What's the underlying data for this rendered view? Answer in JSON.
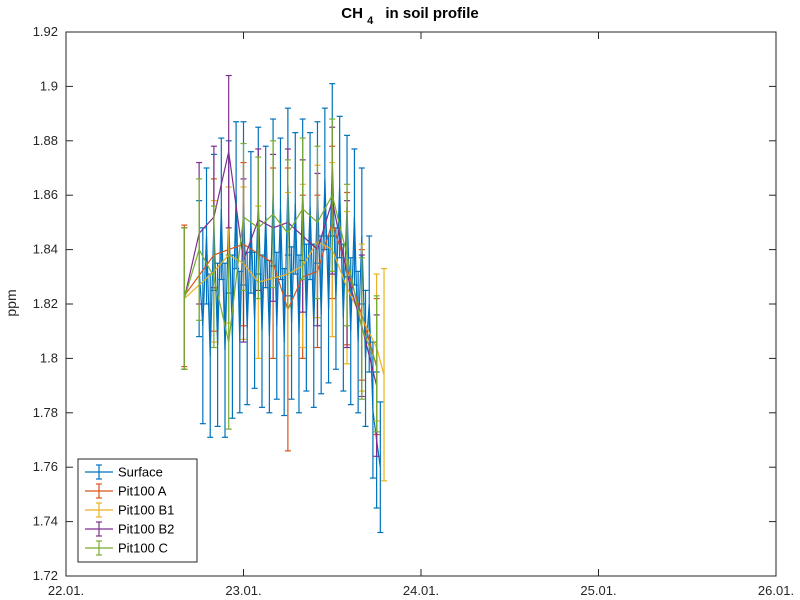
{
  "chart_data": {
    "type": "line",
    "title": "CH",
    "title_subscript": "4",
    "title_suffix": "in soil profile",
    "ylabel": "ppm",
    "xlabel": "",
    "xlim": [
      "22.01.",
      "26.01."
    ],
    "ylim": [
      1.72,
      1.92
    ],
    "x_ticks": [
      "22.01.",
      "23.01.",
      "24.01.",
      "25.01.",
      "26.01."
    ],
    "y_ticks": [
      "1.72",
      "1.74",
      "1.76",
      "1.78",
      "1.8",
      "1.82",
      "1.84",
      "1.86",
      "1.88",
      "1.9",
      "1.92"
    ],
    "grid": false,
    "legend_position": "bottom-left",
    "error_bars": true,
    "series": [
      {
        "name": "Surface",
        "color": "#0072BD",
        "points": [
          [
            "22.01. 18:00",
            1.833,
            0.025
          ],
          [
            "22.01. 18:30",
            1.812,
            0.036
          ],
          [
            "22.01. 19:00",
            1.845,
            0.025
          ],
          [
            "22.01. 19:30",
            1.801,
            0.03
          ],
          [
            "22.01. 20:00",
            1.85,
            0.025
          ],
          [
            "22.01. 20:30",
            1.805,
            0.03
          ],
          [
            "22.01. 21:00",
            1.855,
            0.026
          ],
          [
            "22.01. 21:30",
            1.803,
            0.032
          ],
          [
            "22.01. 22:00",
            1.852,
            0.028
          ],
          [
            "22.01. 22:30",
            1.808,
            0.03
          ],
          [
            "22.01. 23:00",
            1.86,
            0.027
          ],
          [
            "22.01. 23:30",
            1.806,
            0.026
          ],
          [
            "23.01. 00:00",
            1.857,
            0.03
          ],
          [
            "23.01. 00:30",
            1.811,
            0.028
          ],
          [
            "23.01. 01:00",
            1.85,
            0.026
          ],
          [
            "23.01. 01:30",
            1.814,
            0.025
          ],
          [
            "23.01. 02:00",
            1.858,
            0.027
          ],
          [
            "23.01. 02:30",
            1.81,
            0.028
          ],
          [
            "23.01. 03:00",
            1.852,
            0.026
          ],
          [
            "23.01. 03:30",
            1.808,
            0.028
          ],
          [
            "23.01. 04:00",
            1.861,
            0.027
          ],
          [
            "23.01. 04:30",
            1.812,
            0.027
          ],
          [
            "23.01. 05:00",
            1.855,
            0.026
          ],
          [
            "23.01. 05:30",
            1.806,
            0.027
          ],
          [
            "23.01. 06:00",
            1.865,
            0.027
          ],
          [
            "23.01. 06:30",
            1.813,
            0.028
          ],
          [
            "23.01. 07:00",
            1.857,
            0.026
          ],
          [
            "23.01. 07:30",
            1.809,
            0.029
          ],
          [
            "23.01. 08:00",
            1.862,
            0.026
          ],
          [
            "23.01. 08:30",
            1.815,
            0.027
          ],
          [
            "23.01. 09:00",
            1.856,
            0.027
          ],
          [
            "23.01. 09:30",
            1.812,
            0.03
          ],
          [
            "23.01. 10:00",
            1.861,
            0.026
          ],
          [
            "23.01. 10:30",
            1.816,
            0.029
          ],
          [
            "23.01. 11:00",
            1.866,
            0.026
          ],
          [
            "23.01. 11:30",
            1.818,
            0.027
          ],
          [
            "23.01. 12:00",
            1.873,
            0.028
          ],
          [
            "23.01. 12:30",
            1.822,
            0.026
          ],
          [
            "23.01. 13:00",
            1.863,
            0.026
          ],
          [
            "23.01. 13:30",
            1.815,
            0.027
          ],
          [
            "23.01. 14:00",
            1.856,
            0.026
          ],
          [
            "23.01. 14:30",
            1.81,
            0.027
          ],
          [
            "23.01. 15:00",
            1.852,
            0.025
          ],
          [
            "23.01. 15:30",
            1.806,
            0.026
          ],
          [
            "23.01. 16:00",
            1.845,
            0.025
          ],
          [
            "23.01. 16:30",
            1.8,
            0.025
          ],
          [
            "23.01. 17:00",
            1.82,
            0.025
          ],
          [
            "23.01. 17:30",
            1.781,
            0.025
          ],
          [
            "23.01. 18:00",
            1.77,
            0.025
          ],
          [
            "23.01. 18:30",
            1.76,
            0.024
          ]
        ]
      },
      {
        "name": "Pit100 A",
        "color": "#D95319",
        "points": [
          [
            "22.01. 16:00",
            1.823,
            0.026
          ],
          [
            "22.01. 20:00",
            1.838,
            0.028
          ],
          [
            "23.01. 00:00",
            1.842,
            0.03
          ],
          [
            "23.01. 04:00",
            1.835,
            0.035
          ],
          [
            "23.01. 06:00",
            1.818,
            0.052
          ],
          [
            "23.01. 08:00",
            1.83,
            0.03
          ],
          [
            "23.01. 10:00",
            1.832,
            0.028
          ],
          [
            "23.01. 12:00",
            1.85,
            0.028
          ],
          [
            "23.01. 14:00",
            1.833,
            0.028
          ],
          [
            "23.01. 16:00",
            1.816,
            0.024
          ],
          [
            "23.01. 18:00",
            1.797,
            0.025
          ]
        ]
      },
      {
        "name": "Pit100 B1",
        "color": "#EDB120",
        "points": [
          [
            "22.01. 16:00",
            1.822,
            0.026
          ],
          [
            "22.01. 20:00",
            1.832,
            0.026
          ],
          [
            "22.01. 22:00",
            1.838,
            0.025
          ],
          [
            "23.01. 00:00",
            1.835,
            0.028
          ],
          [
            "23.01. 02:00",
            1.828,
            0.028
          ],
          [
            "23.01. 06:00",
            1.831,
            0.03
          ],
          [
            "23.01. 08:00",
            1.834,
            0.03
          ],
          [
            "23.01. 10:00",
            1.843,
            0.028
          ],
          [
            "23.01. 12:00",
            1.84,
            0.032
          ],
          [
            "23.01. 14:00",
            1.826,
            0.028
          ],
          [
            "23.01. 16:00",
            1.815,
            0.027
          ],
          [
            "23.01. 18:00",
            1.804,
            0.027
          ],
          [
            "23.01. 19:00",
            1.794,
            0.039
          ]
        ]
      },
      {
        "name": "Pit100 B2",
        "color": "#7E2F8E",
        "points": [
          [
            "22.01. 16:00",
            1.822,
            0.026
          ],
          [
            "22.01. 18:00",
            1.846,
            0.026
          ],
          [
            "22.01. 20:00",
            1.852,
            0.026
          ],
          [
            "22.01. 22:00",
            1.876,
            0.028
          ],
          [
            "23.01. 00:00",
            1.836,
            0.03
          ],
          [
            "23.01. 02:00",
            1.851,
            0.026
          ],
          [
            "23.01. 04:00",
            1.848,
            0.027
          ],
          [
            "23.01. 06:00",
            1.85,
            0.027
          ],
          [
            "23.01. 08:00",
            1.845,
            0.028
          ],
          [
            "23.01. 10:00",
            1.84,
            0.028
          ],
          [
            "23.01. 12:00",
            1.858,
            0.027
          ],
          [
            "23.01. 14:00",
            1.831,
            0.027
          ],
          [
            "23.01. 16:00",
            1.812,
            0.026
          ],
          [
            "23.01. 18:00",
            1.79,
            0.026
          ]
        ]
      },
      {
        "name": "Pit100 C",
        "color": "#77AC30",
        "points": [
          [
            "22.01. 16:00",
            1.822,
            0.026
          ],
          [
            "22.01. 18:00",
            1.84,
            0.026
          ],
          [
            "22.01. 20:00",
            1.83,
            0.026
          ],
          [
            "22.01. 22:00",
            1.806,
            0.032
          ],
          [
            "23.01. 00:00",
            1.852,
            0.027
          ],
          [
            "23.01. 02:00",
            1.848,
            0.026
          ],
          [
            "23.01. 04:00",
            1.853,
            0.027
          ],
          [
            "23.01. 06:00",
            1.846,
            0.027
          ],
          [
            "23.01. 08:00",
            1.855,
            0.026
          ],
          [
            "23.01. 10:00",
            1.85,
            0.028
          ],
          [
            "23.01. 12:00",
            1.86,
            0.028
          ],
          [
            "23.01. 14:00",
            1.838,
            0.026
          ],
          [
            "23.01. 16:00",
            1.811,
            0.026
          ],
          [
            "23.01. 18:00",
            1.798,
            0.025
          ]
        ]
      }
    ]
  }
}
